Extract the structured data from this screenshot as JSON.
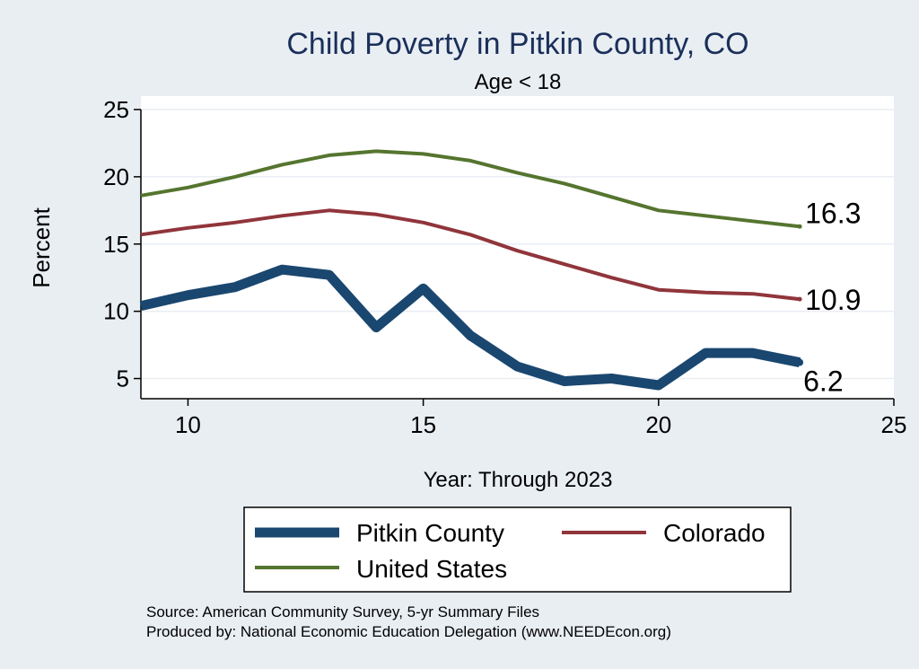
{
  "chart_data": {
    "type": "line",
    "title": "Child Poverty in Pitkin County, CO",
    "subtitle": "Age < 18",
    "xlabel": "Year: Through 2023",
    "ylabel": "Percent",
    "xlim": [
      9,
      25
    ],
    "ylim": [
      3.5,
      26
    ],
    "xticks": [
      10,
      15,
      20,
      25
    ],
    "yticks": [
      5,
      10,
      15,
      20,
      25
    ],
    "grid": true,
    "legend_position": "bottom",
    "series": [
      {
        "name": "Pitkin County",
        "color": "#1a476f",
        "x": [
          9,
          10,
          11,
          12,
          13,
          14,
          15,
          16,
          17,
          18,
          19,
          20,
          21,
          22,
          23
        ],
        "values": [
          10.4,
          11.2,
          11.8,
          13.1,
          12.7,
          8.8,
          11.7,
          8.2,
          5.9,
          4.8,
          5.0,
          4.5,
          6.9,
          6.9,
          6.2
        ],
        "end_label": "6.2"
      },
      {
        "name": "Colorado",
        "color": "#90353b",
        "x": [
          9,
          10,
          11,
          12,
          13,
          14,
          15,
          16,
          17,
          18,
          19,
          20,
          21,
          22,
          23
        ],
        "values": [
          15.7,
          16.2,
          16.6,
          17.1,
          17.5,
          17.2,
          16.6,
          15.7,
          14.5,
          13.5,
          12.5,
          11.6,
          11.4,
          11.3,
          10.9
        ],
        "end_label": "10.9"
      },
      {
        "name": "United States",
        "color": "#55752f",
        "x": [
          9,
          10,
          11,
          12,
          13,
          14,
          15,
          16,
          17,
          18,
          19,
          20,
          21,
          22,
          23
        ],
        "values": [
          18.6,
          19.2,
          20.0,
          20.9,
          21.6,
          21.9,
          21.7,
          21.2,
          20.3,
          19.5,
          18.5,
          17.5,
          17.1,
          16.7,
          16.3
        ],
        "end_label": "16.3"
      }
    ]
  },
  "footer": {
    "source": "Source: American Community Survey, 5-yr Summary Files",
    "produced_by": "Produced by: National Economic Education Delegation (www.NEEDEcon.org)"
  }
}
